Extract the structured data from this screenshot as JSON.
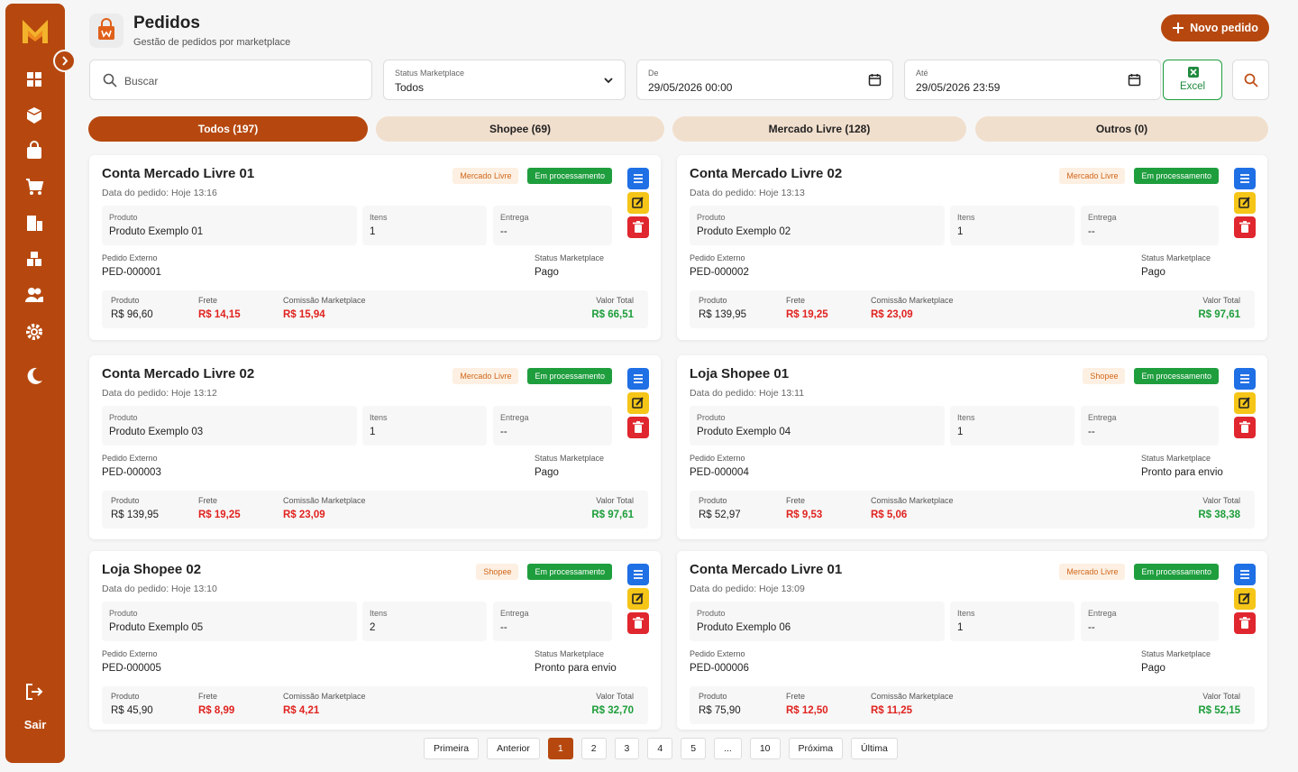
{
  "sidebar": {
    "logout": "Sair"
  },
  "header": {
    "title": "Pedidos",
    "subtitle": "Gestão de pedidos por marketplace",
    "new_button": "Novo pedido"
  },
  "filters": {
    "search_placeholder": "Buscar",
    "status": {
      "label": "Status Marketplace",
      "value": "Todos"
    },
    "from": {
      "label": "De",
      "value": "29/05/2026 00:00"
    },
    "to": {
      "label": "Até",
      "value": "29/05/2026 23:59"
    },
    "excel": "Excel"
  },
  "tabs": [
    "Todos (197)",
    "Shopee (69)",
    "Mercado Livre (128)",
    "Outros (0)"
  ],
  "card_labels": {
    "product": "Produto",
    "items": "Itens",
    "delivery": "Entrega",
    "external": "Pedido Externo",
    "marketplace_status": "Status Marketplace",
    "freight": "Frete",
    "commission": "Comissão Marketplace",
    "total": "Valor Total"
  },
  "orders": [
    {
      "account": "Conta Mercado Livre 01",
      "date": "Data do pedido: Hoje 13:16",
      "marketplace": "Mercado Livre",
      "status": "Em processamento",
      "product": "Produto Exemplo 01",
      "items": 1,
      "delivery": "--",
      "external_id": "PED-000001",
      "marketplace_status": "Pago",
      "price": "R$ 96,60",
      "freight": "R$ 14,15",
      "commission": "R$ 15,94",
      "total": "R$ 66,51"
    },
    {
      "account": "Conta Mercado Livre 02",
      "date": "Data do pedido: Hoje 13:13",
      "marketplace": "Mercado Livre",
      "status": "Em processamento",
      "product": "Produto Exemplo 02",
      "items": 1,
      "delivery": "--",
      "external_id": "PED-000002",
      "marketplace_status": "Pago",
      "price": "R$ 139,95",
      "freight": "R$ 19,25",
      "commission": "R$ 23,09",
      "total": "R$ 97,61"
    },
    {
      "account": "Conta Mercado Livre 02",
      "date": "Data do pedido: Hoje 13:12",
      "marketplace": "Mercado Livre",
      "status": "Em processamento",
      "product": "Produto Exemplo 03",
      "items": 1,
      "delivery": "--",
      "external_id": "PED-000003",
      "marketplace_status": "Pago",
      "price": "R$ 139,95",
      "freight": "R$ 19,25",
      "commission": "R$ 23,09",
      "total": "R$ 97,61"
    },
    {
      "account": "Loja Shopee 01",
      "date": "Data do pedido: Hoje 13:11",
      "marketplace": "Shopee",
      "status": "Em processamento",
      "product": "Produto Exemplo 04",
      "items": 1,
      "delivery": "--",
      "external_id": "PED-000004",
      "marketplace_status": "Pronto para envio",
      "price": "R$ 52,97",
      "freight": "R$ 9,53",
      "commission": "R$ 5,06",
      "total": "R$ 38,38"
    },
    {
      "account": "Loja Shopee 02",
      "date": "Data do pedido: Hoje 13:10",
      "marketplace": "Shopee",
      "status": "Em processamento",
      "product": "Produto Exemplo 05",
      "items": 2,
      "delivery": "--",
      "external_id": "PED-000005",
      "marketplace_status": "Pronto para envio",
      "price": "R$ 45,90",
      "freight": "R$ 8,99",
      "commission": "R$ 4,21",
      "total": "R$ 32,70"
    },
    {
      "account": "Conta Mercado Livre 01",
      "date": "Data do pedido: Hoje 13:09",
      "marketplace": "Mercado Livre",
      "status": "Em processamento",
      "product": "Produto Exemplo 06",
      "items": 1,
      "delivery": "--",
      "external_id": "PED-000006",
      "marketplace_status": "Pago",
      "price": "R$ 75,90",
      "freight": "R$ 12,50",
      "commission": "R$ 11,25",
      "total": "R$ 52,15"
    }
  ],
  "pagination": [
    "Primeira",
    "Anterior",
    "1",
    "2",
    "3",
    "4",
    "5",
    "...",
    "10",
    "Próxima",
    "Última"
  ]
}
